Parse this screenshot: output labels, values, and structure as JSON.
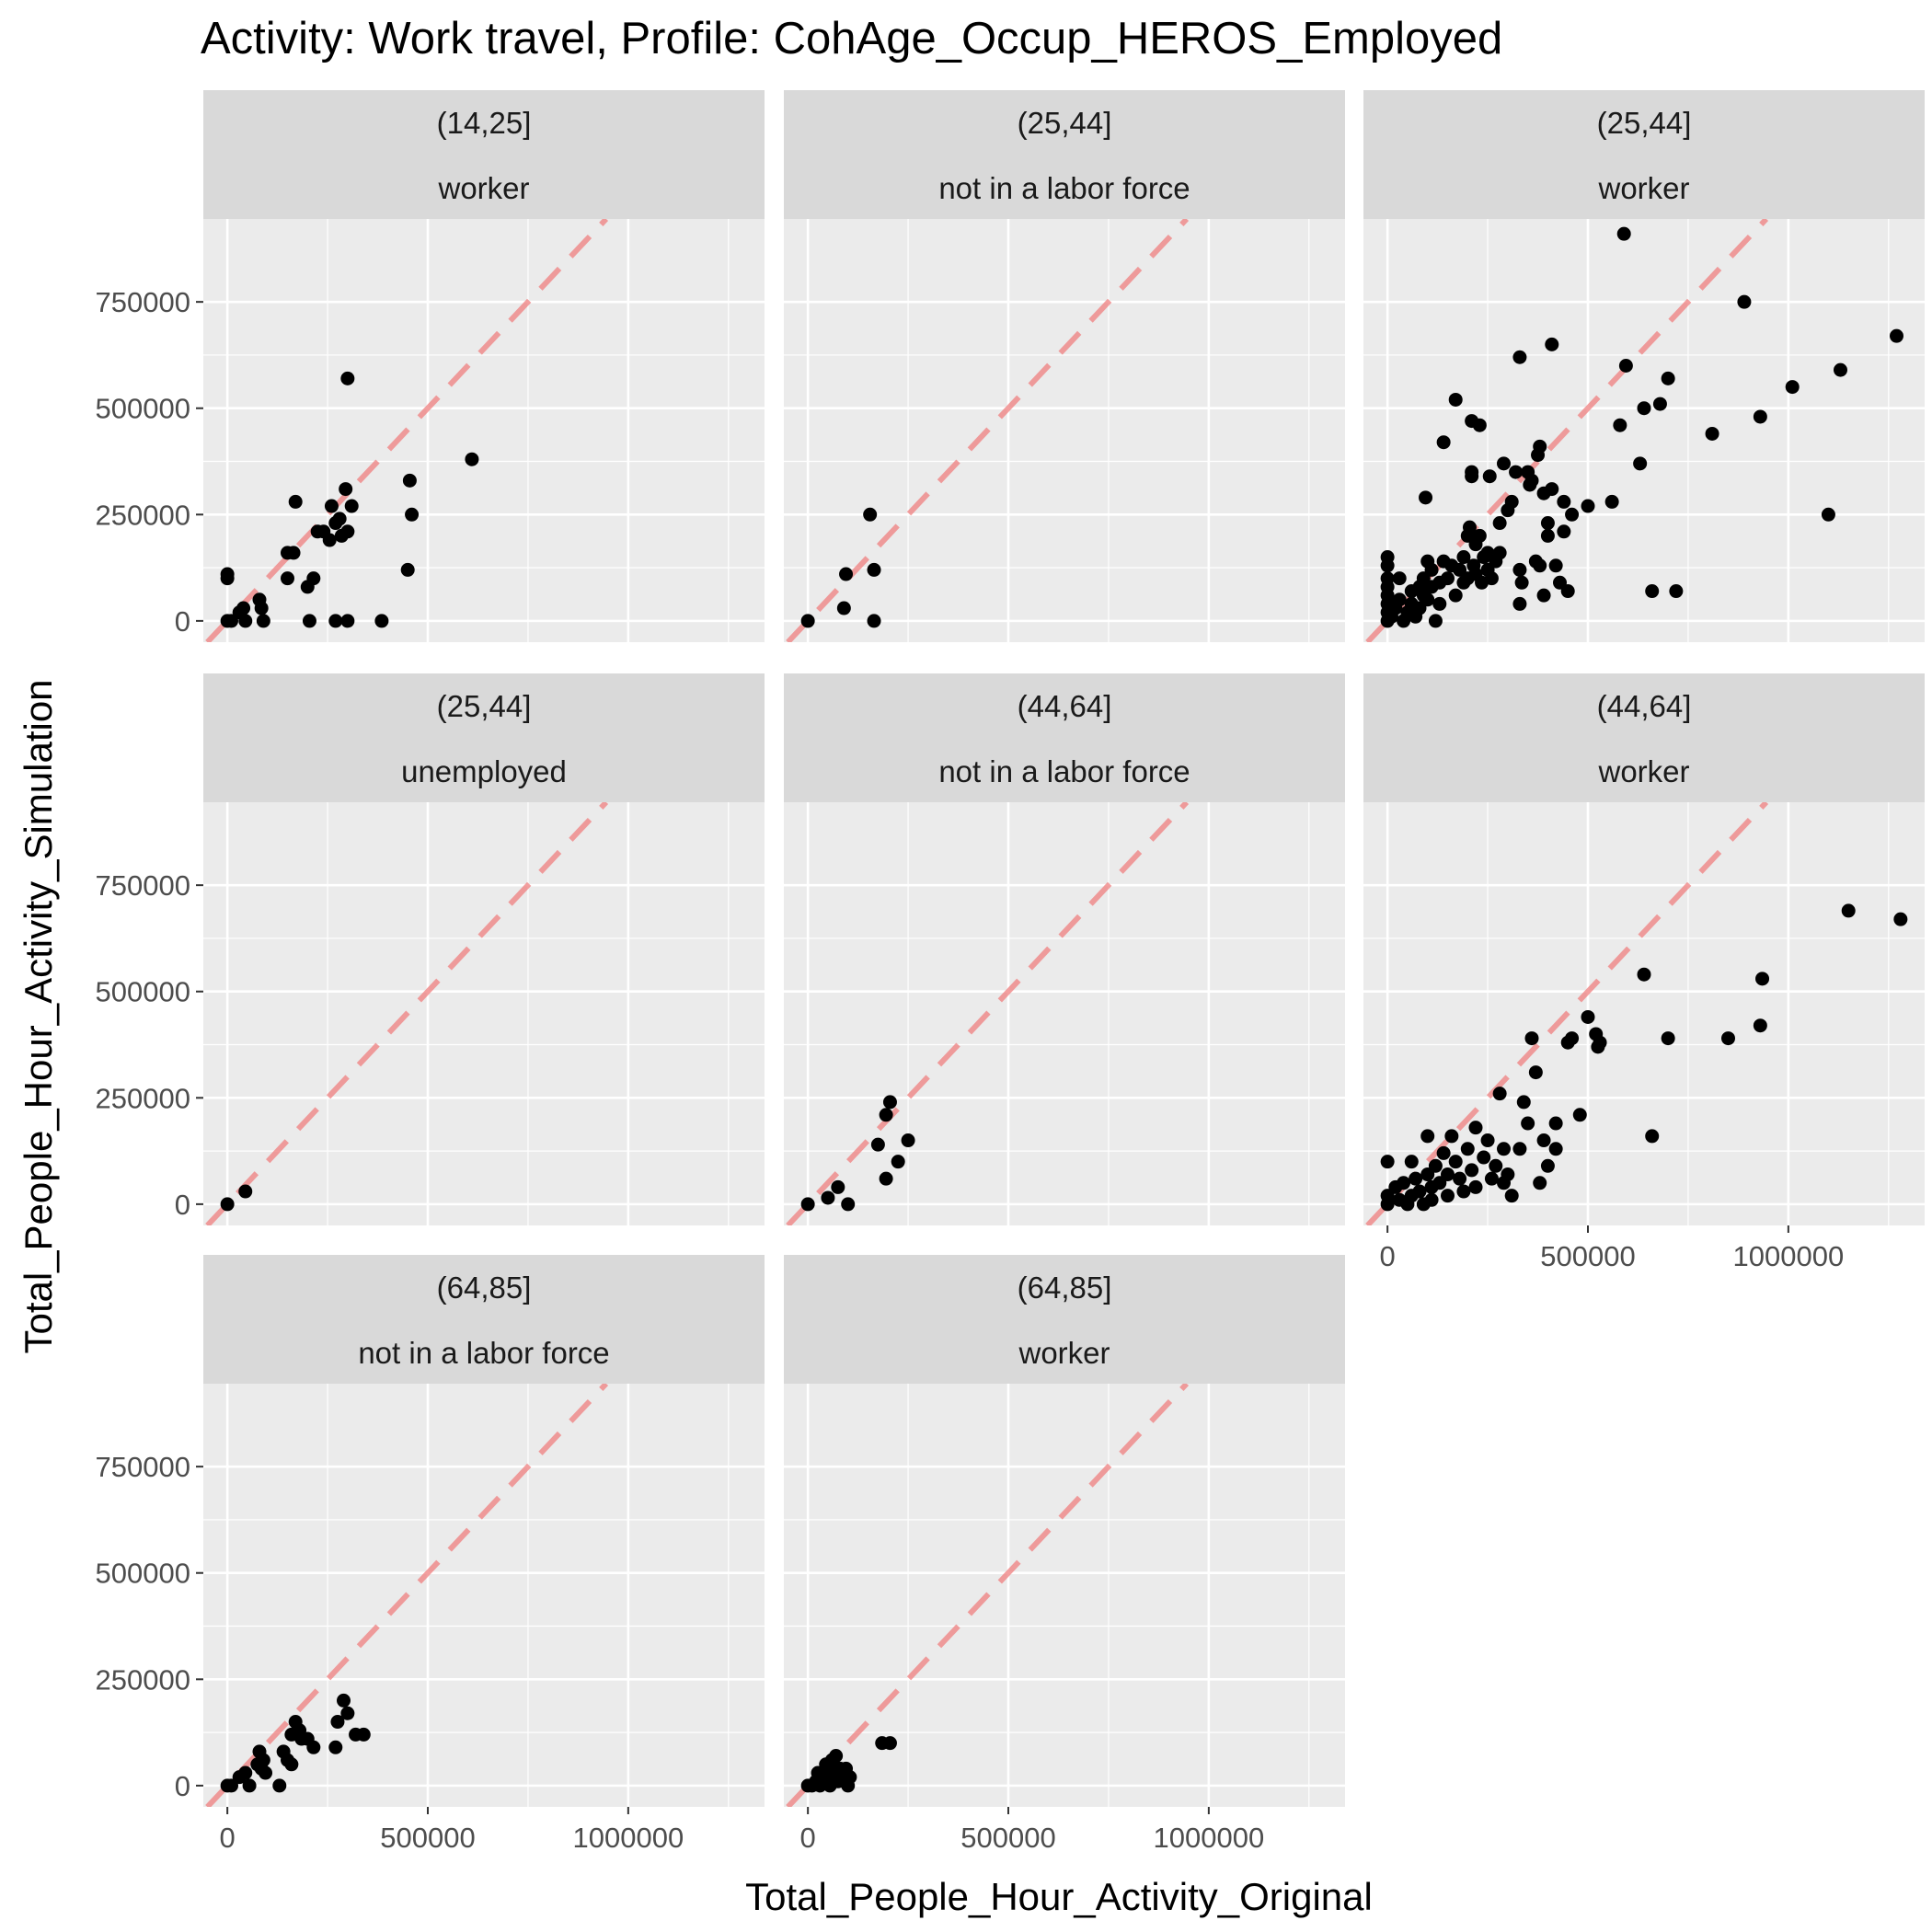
{
  "chart_data": {
    "type": "scatter",
    "title": "Activity: Work travel, Profile: CohAge_Occup_HEROS_Employed",
    "xlabel": "Total_People_Hour_Activity_Original",
    "ylabel": "Total_People_Hour_Activity_Simulation",
    "xlim": [
      -60000,
      1340000
    ],
    "ylim": [
      -50000,
      945000
    ],
    "x_ticks": [
      0,
      500000,
      1000000
    ],
    "x_tick_labels": [
      "0",
      "500000",
      "1000000"
    ],
    "y_ticks": [
      0,
      250000,
      500000,
      750000
    ],
    "y_tick_labels": [
      "0",
      "250000",
      "500000",
      "750000"
    ],
    "grid": true,
    "reference_line": {
      "slope": 1,
      "intercept": 0,
      "color": "#f08080",
      "style": "dashed"
    },
    "point_color": "#000000",
    "panels": [
      {
        "age": "(14,25]",
        "status": "worker",
        "points": [
          [
            0,
            0
          ],
          [
            0,
            100000
          ],
          [
            0,
            110000
          ],
          [
            10000,
            0
          ],
          [
            30000,
            20000
          ],
          [
            40000,
            30000
          ],
          [
            45000,
            0
          ],
          [
            80000,
            50000
          ],
          [
            85000,
            30000
          ],
          [
            90000,
            0
          ],
          [
            150000,
            100000
          ],
          [
            150000,
            160000
          ],
          [
            165000,
            160000
          ],
          [
            170000,
            280000
          ],
          [
            200000,
            80000
          ],
          [
            205000,
            0
          ],
          [
            215000,
            100000
          ],
          [
            225000,
            210000
          ],
          [
            240000,
            210000
          ],
          [
            255000,
            190000
          ],
          [
            260000,
            270000
          ],
          [
            270000,
            0
          ],
          [
            270000,
            230000
          ],
          [
            280000,
            240000
          ],
          [
            285000,
            200000
          ],
          [
            295000,
            310000
          ],
          [
            300000,
            0
          ],
          [
            300000,
            210000
          ],
          [
            300000,
            570000
          ],
          [
            310000,
            270000
          ],
          [
            385000,
            0
          ],
          [
            450000,
            120000
          ],
          [
            455000,
            330000
          ],
          [
            460000,
            250000
          ],
          [
            610000,
            380000
          ]
        ]
      },
      {
        "age": "(25,44]",
        "status": "not in a labor force",
        "points": [
          [
            0,
            0
          ],
          [
            90000,
            30000
          ],
          [
            95000,
            110000
          ],
          [
            155000,
            250000
          ],
          [
            165000,
            120000
          ],
          [
            165000,
            0
          ]
        ]
      },
      {
        "age": "(25,44]",
        "status": "worker",
        "points": [
          [
            0,
            0
          ],
          [
            0,
            20000
          ],
          [
            0,
            40000
          ],
          [
            0,
            60000
          ],
          [
            0,
            80000
          ],
          [
            0,
            100000
          ],
          [
            0,
            130000
          ],
          [
            0,
            150000
          ],
          [
            10000,
            10000
          ],
          [
            20000,
            30000
          ],
          [
            30000,
            50000
          ],
          [
            30000,
            100000
          ],
          [
            40000,
            0
          ],
          [
            50000,
            20000
          ],
          [
            60000,
            40000
          ],
          [
            60000,
            70000
          ],
          [
            70000,
            10000
          ],
          [
            80000,
            80000
          ],
          [
            80000,
            30000
          ],
          [
            90000,
            100000
          ],
          [
            90000,
            60000
          ],
          [
            95000,
            290000
          ],
          [
            100000,
            140000
          ],
          [
            100000,
            50000
          ],
          [
            110000,
            120000
          ],
          [
            110000,
            80000
          ],
          [
            120000,
            0
          ],
          [
            130000,
            40000
          ],
          [
            130000,
            90000
          ],
          [
            140000,
            420000
          ],
          [
            140000,
            140000
          ],
          [
            150000,
            100000
          ],
          [
            160000,
            130000
          ],
          [
            170000,
            520000
          ],
          [
            170000,
            60000
          ],
          [
            180000,
            120000
          ],
          [
            190000,
            90000
          ],
          [
            190000,
            150000
          ],
          [
            200000,
            100000
          ],
          [
            200000,
            200000
          ],
          [
            205000,
            220000
          ],
          [
            210000,
            350000
          ],
          [
            210000,
            340000
          ],
          [
            210000,
            470000
          ],
          [
            215000,
            130000
          ],
          [
            220000,
            180000
          ],
          [
            220000,
            110000
          ],
          [
            230000,
            200000
          ],
          [
            230000,
            460000
          ],
          [
            235000,
            90000
          ],
          [
            240000,
            150000
          ],
          [
            250000,
            160000
          ],
          [
            250000,
            120000
          ],
          [
            255000,
            340000
          ],
          [
            260000,
            100000
          ],
          [
            270000,
            140000
          ],
          [
            280000,
            230000
          ],
          [
            280000,
            160000
          ],
          [
            290000,
            370000
          ],
          [
            300000,
            260000
          ],
          [
            310000,
            280000
          ],
          [
            320000,
            350000
          ],
          [
            330000,
            620000
          ],
          [
            330000,
            40000
          ],
          [
            335000,
            90000
          ],
          [
            330000,
            120000
          ],
          [
            350000,
            350000
          ],
          [
            355000,
            320000
          ],
          [
            360000,
            330000
          ],
          [
            370000,
            140000
          ],
          [
            375000,
            390000
          ],
          [
            380000,
            410000
          ],
          [
            380000,
            130000
          ],
          [
            390000,
            300000
          ],
          [
            390000,
            60000
          ],
          [
            400000,
            200000
          ],
          [
            400000,
            230000
          ],
          [
            410000,
            650000
          ],
          [
            410000,
            310000
          ],
          [
            420000,
            130000
          ],
          [
            430000,
            90000
          ],
          [
            440000,
            280000
          ],
          [
            440000,
            210000
          ],
          [
            450000,
            70000
          ],
          [
            460000,
            250000
          ],
          [
            500000,
            270000
          ],
          [
            560000,
            280000
          ],
          [
            580000,
            460000
          ],
          [
            590000,
            910000
          ],
          [
            595000,
            600000
          ],
          [
            630000,
            370000
          ],
          [
            640000,
            500000
          ],
          [
            660000,
            70000
          ],
          [
            680000,
            510000
          ],
          [
            700000,
            570000
          ],
          [
            720000,
            70000
          ],
          [
            810000,
            440000
          ],
          [
            890000,
            750000
          ],
          [
            930000,
            480000
          ],
          [
            1010000,
            550000
          ],
          [
            1100000,
            250000
          ],
          [
            1130000,
            590000
          ],
          [
            1270000,
            670000
          ]
        ]
      },
      {
        "age": "(25,44]",
        "status": "unemployed",
        "points": [
          [
            0,
            0
          ],
          [
            45000,
            30000
          ]
        ]
      },
      {
        "age": "(44,64]",
        "status": "not in a labor force",
        "points": [
          [
            0,
            0
          ],
          [
            50000,
            15000
          ],
          [
            75000,
            40000
          ],
          [
            100000,
            0
          ],
          [
            175000,
            140000
          ],
          [
            195000,
            60000
          ],
          [
            195000,
            210000
          ],
          [
            205000,
            240000
          ],
          [
            225000,
            100000
          ],
          [
            250000,
            150000
          ]
        ]
      },
      {
        "age": "(44,64]",
        "status": "worker",
        "points": [
          [
            0,
            0
          ],
          [
            0,
            20000
          ],
          [
            0,
            100000
          ],
          [
            20000,
            40000
          ],
          [
            30000,
            10000
          ],
          [
            40000,
            50000
          ],
          [
            50000,
            0
          ],
          [
            60000,
            20000
          ],
          [
            60000,
            100000
          ],
          [
            70000,
            60000
          ],
          [
            80000,
            30000
          ],
          [
            90000,
            0
          ],
          [
            100000,
            70000
          ],
          [
            100000,
            160000
          ],
          [
            110000,
            40000
          ],
          [
            110000,
            10000
          ],
          [
            120000,
            90000
          ],
          [
            130000,
            50000
          ],
          [
            140000,
            120000
          ],
          [
            150000,
            20000
          ],
          [
            150000,
            70000
          ],
          [
            160000,
            160000
          ],
          [
            170000,
            100000
          ],
          [
            180000,
            60000
          ],
          [
            190000,
            30000
          ],
          [
            200000,
            130000
          ],
          [
            210000,
            80000
          ],
          [
            220000,
            180000
          ],
          [
            220000,
            40000
          ],
          [
            240000,
            110000
          ],
          [
            250000,
            150000
          ],
          [
            260000,
            60000
          ],
          [
            270000,
            90000
          ],
          [
            280000,
            260000
          ],
          [
            290000,
            130000
          ],
          [
            290000,
            50000
          ],
          [
            300000,
            70000
          ],
          [
            310000,
            20000
          ],
          [
            330000,
            130000
          ],
          [
            340000,
            240000
          ],
          [
            350000,
            190000
          ],
          [
            360000,
            390000
          ],
          [
            370000,
            310000
          ],
          [
            380000,
            50000
          ],
          [
            390000,
            150000
          ],
          [
            400000,
            90000
          ],
          [
            420000,
            190000
          ],
          [
            420000,
            130000
          ],
          [
            450000,
            380000
          ],
          [
            460000,
            390000
          ],
          [
            480000,
            210000
          ],
          [
            500000,
            440000
          ],
          [
            520000,
            400000
          ],
          [
            525000,
            370000
          ],
          [
            530000,
            380000
          ],
          [
            640000,
            540000
          ],
          [
            660000,
            160000
          ],
          [
            700000,
            390000
          ],
          [
            850000,
            390000
          ],
          [
            930000,
            420000
          ],
          [
            935000,
            530000
          ],
          [
            1150000,
            690000
          ],
          [
            1280000,
            670000
          ]
        ]
      },
      {
        "age": "(64,85]",
        "status": "not in a labor force",
        "points": [
          [
            0,
            0
          ],
          [
            10000,
            0
          ],
          [
            30000,
            20000
          ],
          [
            45000,
            30000
          ],
          [
            55000,
            0
          ],
          [
            75000,
            50000
          ],
          [
            80000,
            80000
          ],
          [
            85000,
            40000
          ],
          [
            90000,
            60000
          ],
          [
            95000,
            30000
          ],
          [
            130000,
            0
          ],
          [
            140000,
            80000
          ],
          [
            150000,
            60000
          ],
          [
            160000,
            50000
          ],
          [
            160000,
            120000
          ],
          [
            170000,
            150000
          ],
          [
            180000,
            130000
          ],
          [
            185000,
            110000
          ],
          [
            200000,
            110000
          ],
          [
            215000,
            90000
          ],
          [
            270000,
            90000
          ],
          [
            275000,
            150000
          ],
          [
            290000,
            200000
          ],
          [
            300000,
            170000
          ],
          [
            320000,
            120000
          ],
          [
            340000,
            120000
          ]
        ]
      },
      {
        "age": "(64,85]",
        "status": "worker",
        "points": [
          [
            0,
            0
          ],
          [
            10000,
            0
          ],
          [
            20000,
            10000
          ],
          [
            25000,
            30000
          ],
          [
            30000,
            0
          ],
          [
            40000,
            20000
          ],
          [
            45000,
            50000
          ],
          [
            50000,
            40000
          ],
          [
            55000,
            0
          ],
          [
            60000,
            60000
          ],
          [
            65000,
            20000
          ],
          [
            70000,
            70000
          ],
          [
            75000,
            10000
          ],
          [
            80000,
            40000
          ],
          [
            85000,
            30000
          ],
          [
            90000,
            20000
          ],
          [
            95000,
            40000
          ],
          [
            100000,
            0
          ],
          [
            105000,
            20000
          ],
          [
            185000,
            100000
          ],
          [
            205000,
            100000
          ]
        ]
      }
    ]
  }
}
